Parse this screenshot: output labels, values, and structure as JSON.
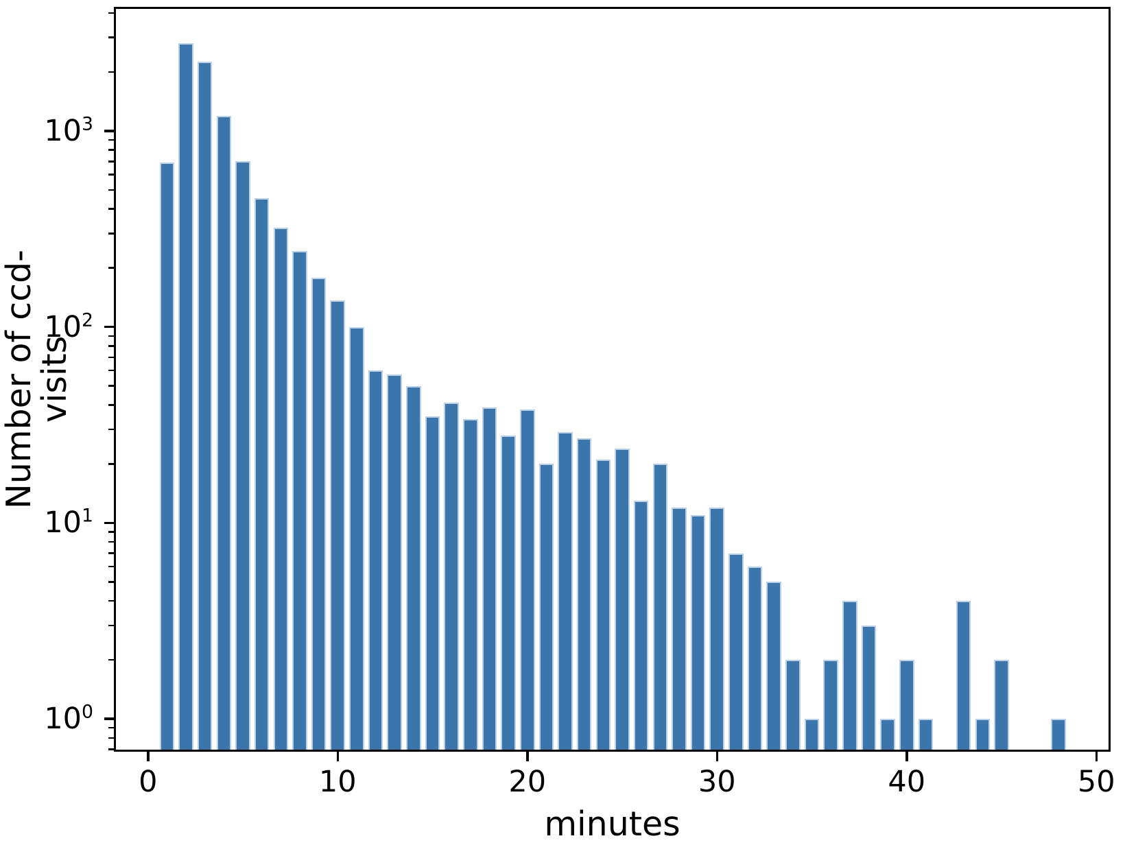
{
  "figure": {
    "background": "#ffffff",
    "text_color": "#000000"
  },
  "chart_data": {
    "type": "bar",
    "subtype": "histogram",
    "title": "",
    "xlabel": "minutes",
    "ylabel": "Number of ccd-visits",
    "yscale": "log",
    "grid": false,
    "legend_position": "none",
    "x_bin_centers": [
      1,
      2,
      3,
      4,
      5,
      6,
      7,
      8,
      9,
      10,
      11,
      12,
      13,
      14,
      15,
      16,
      17,
      18,
      19,
      20,
      21,
      22,
      23,
      24,
      25,
      26,
      27,
      28,
      29,
      30,
      31,
      32,
      33,
      34,
      35,
      36,
      37,
      38,
      39,
      40,
      41,
      42,
      43,
      44,
      45,
      46,
      47,
      48
    ],
    "values": [
      690,
      2800,
      2250,
      1190,
      700,
      455,
      320,
      245,
      178,
      137,
      100,
      60,
      57,
      50,
      35,
      41,
      34,
      39,
      28,
      38,
      20,
      29,
      27,
      21,
      24,
      13,
      20,
      12,
      11,
      12,
      7,
      6,
      5,
      2,
      1,
      2,
      4,
      3,
      1,
      2,
      1,
      0,
      4,
      1,
      2,
      0,
      0,
      1
    ],
    "bar_width_fraction": 0.78,
    "xlim": [
      -1.8,
      50.75
    ],
    "ylim": [
      0.68,
      4300
    ],
    "xticks": [
      0,
      10,
      20,
      30,
      40,
      50
    ],
    "xtick_labels": [
      "0",
      "10",
      "20",
      "30",
      "40",
      "50"
    ],
    "ytick_exponents": [
      0,
      1,
      2,
      3
    ],
    "ytick_labels": [
      "10⁰",
      "10¹",
      "10²",
      "10³"
    ],
    "colors": {
      "bar_fill": "#3a76ac",
      "bar_edge": "#b9d0e6",
      "axis": "#000000",
      "text": "#000000"
    }
  }
}
